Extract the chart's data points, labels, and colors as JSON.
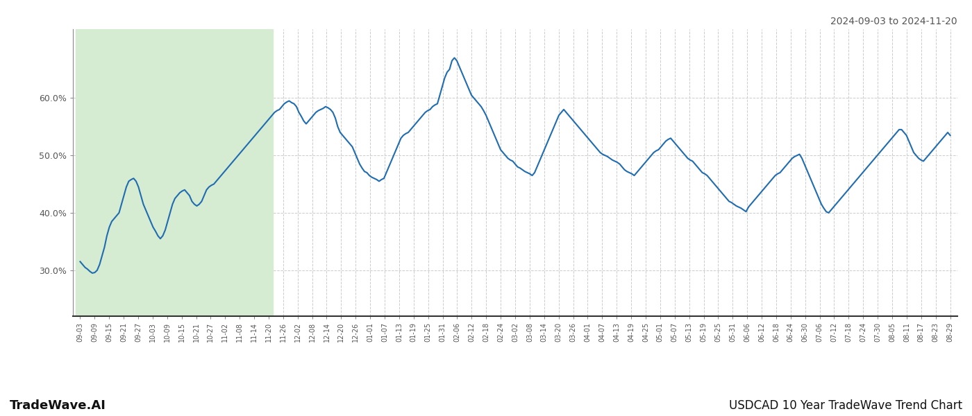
{
  "title_top_right": "2024-09-03 to 2024-11-20",
  "title_bottom_left": "TradeWave.AI",
  "title_bottom_right": "USDCAD 10 Year TradeWave Trend Chart",
  "background_color": "#ffffff",
  "highlight_color": "#d6ecd2",
  "line_color": "#1f6cb0",
  "line_width": 1.5,
  "ylim": [
    22,
    72
  ],
  "yticks": [
    30,
    40,
    50,
    60
  ],
  "x_labels": [
    "09-03",
    "09-09",
    "09-15",
    "09-21",
    "09-27",
    "10-03",
    "10-09",
    "10-15",
    "10-21",
    "10-27",
    "11-02",
    "11-08",
    "11-14",
    "11-20",
    "11-26",
    "12-02",
    "12-08",
    "12-14",
    "12-20",
    "12-26",
    "01-01",
    "01-07",
    "01-13",
    "01-19",
    "01-25",
    "01-31",
    "02-06",
    "02-12",
    "02-18",
    "02-24",
    "03-02",
    "03-08",
    "03-14",
    "03-20",
    "03-26",
    "04-01",
    "04-07",
    "04-13",
    "04-19",
    "04-25",
    "05-01",
    "05-07",
    "05-13",
    "05-19",
    "05-25",
    "05-31",
    "06-06",
    "06-12",
    "06-18",
    "06-24",
    "06-30",
    "07-06",
    "07-12",
    "07-18",
    "07-24",
    "07-30",
    "08-05",
    "08-11",
    "08-17",
    "08-23",
    "08-29"
  ],
  "highlight_start_label": "09-03",
  "highlight_end_label": "11-20",
  "values": [
    31.5,
    31.0,
    30.5,
    30.2,
    29.8,
    29.5,
    29.6,
    30.0,
    31.0,
    32.5,
    34.0,
    36.0,
    37.5,
    38.5,
    39.0,
    39.5,
    40.0,
    41.5,
    43.0,
    44.5,
    45.5,
    45.8,
    46.0,
    45.5,
    44.5,
    43.0,
    41.5,
    40.5,
    39.5,
    38.5,
    37.5,
    36.8,
    36.0,
    35.5,
    36.0,
    37.0,
    38.5,
    40.0,
    41.5,
    42.5,
    43.0,
    43.5,
    43.8,
    44.0,
    43.5,
    43.0,
    42.0,
    41.5,
    41.2,
    41.5,
    42.0,
    43.0,
    44.0,
    44.5,
    44.8,
    45.0,
    45.5,
    46.0,
    46.5,
    47.0,
    47.5,
    48.0,
    48.5,
    49.0,
    49.5,
    50.0,
    50.5,
    51.0,
    51.5,
    52.0,
    52.5,
    53.0,
    53.5,
    54.0,
    54.5,
    55.0,
    55.5,
    56.0,
    56.5,
    57.0,
    57.5,
    57.8,
    58.0,
    58.5,
    59.0,
    59.3,
    59.5,
    59.2,
    59.0,
    58.5,
    57.5,
    56.8,
    56.0,
    55.5,
    56.0,
    56.5,
    57.0,
    57.5,
    57.8,
    58.0,
    58.2,
    58.5,
    58.3,
    58.0,
    57.5,
    56.5,
    55.0,
    54.0,
    53.5,
    53.0,
    52.5,
    52.0,
    51.5,
    50.5,
    49.5,
    48.5,
    47.8,
    47.2,
    47.0,
    46.5,
    46.2,
    46.0,
    45.8,
    45.5,
    45.8,
    46.0,
    47.0,
    48.0,
    49.0,
    50.0,
    51.0,
    52.0,
    53.0,
    53.5,
    53.8,
    54.0,
    54.5,
    55.0,
    55.5,
    56.0,
    56.5,
    57.0,
    57.5,
    57.8,
    58.0,
    58.5,
    58.8,
    59.0,
    60.5,
    62.0,
    63.5,
    64.5,
    65.0,
    66.5,
    67.0,
    66.5,
    65.5,
    64.5,
    63.5,
    62.5,
    61.5,
    60.5,
    60.0,
    59.5,
    59.0,
    58.5,
    57.8,
    57.0,
    56.0,
    55.0,
    54.0,
    53.0,
    52.0,
    51.0,
    50.5,
    50.0,
    49.5,
    49.2,
    49.0,
    48.5,
    48.0,
    47.8,
    47.5,
    47.2,
    47.0,
    46.8,
    46.5,
    47.0,
    48.0,
    49.0,
    50.0,
    51.0,
    52.0,
    53.0,
    54.0,
    55.0,
    56.0,
    57.0,
    57.5,
    58.0,
    57.5,
    57.0,
    56.5,
    56.0,
    55.5,
    55.0,
    54.5,
    54.0,
    53.5,
    53.0,
    52.5,
    52.0,
    51.5,
    51.0,
    50.5,
    50.2,
    50.0,
    49.8,
    49.5,
    49.2,
    49.0,
    48.8,
    48.5,
    48.0,
    47.5,
    47.2,
    47.0,
    46.8,
    46.5,
    47.0,
    47.5,
    48.0,
    48.5,
    49.0,
    49.5,
    50.0,
    50.5,
    50.8,
    51.0,
    51.5,
    52.0,
    52.5,
    52.8,
    53.0,
    52.5,
    52.0,
    51.5,
    51.0,
    50.5,
    50.0,
    49.5,
    49.2,
    49.0,
    48.5,
    48.0,
    47.5,
    47.0,
    46.8,
    46.5,
    46.0,
    45.5,
    45.0,
    44.5,
    44.0,
    43.5,
    43.0,
    42.5,
    42.0,
    41.8,
    41.5,
    41.2,
    41.0,
    40.8,
    40.5,
    40.2,
    41.0,
    41.5,
    42.0,
    42.5,
    43.0,
    43.5,
    44.0,
    44.5,
    45.0,
    45.5,
    46.0,
    46.5,
    46.8,
    47.0,
    47.5,
    48.0,
    48.5,
    49.0,
    49.5,
    49.8,
    50.0,
    50.2,
    49.5,
    48.5,
    47.5,
    46.5,
    45.5,
    44.5,
    43.5,
    42.5,
    41.5,
    40.8,
    40.2,
    40.0,
    40.5,
    41.0,
    41.5,
    42.0,
    42.5,
    43.0,
    43.5,
    44.0,
    44.5,
    45.0,
    45.5,
    46.0,
    46.5,
    47.0,
    47.5,
    48.0,
    48.5,
    49.0,
    49.5,
    50.0,
    50.5,
    51.0,
    51.5,
    52.0,
    52.5,
    53.0,
    53.5,
    54.0,
    54.5,
    54.5,
    54.0,
    53.5,
    52.5,
    51.5,
    50.5,
    50.0,
    49.5,
    49.2,
    49.0,
    49.5,
    50.0,
    50.5,
    51.0,
    51.5,
    52.0,
    52.5,
    53.0,
    53.5,
    54.0,
    53.5
  ],
  "grid_color": "#cccccc",
  "tick_color": "#555555",
  "axis_color": "#333333"
}
